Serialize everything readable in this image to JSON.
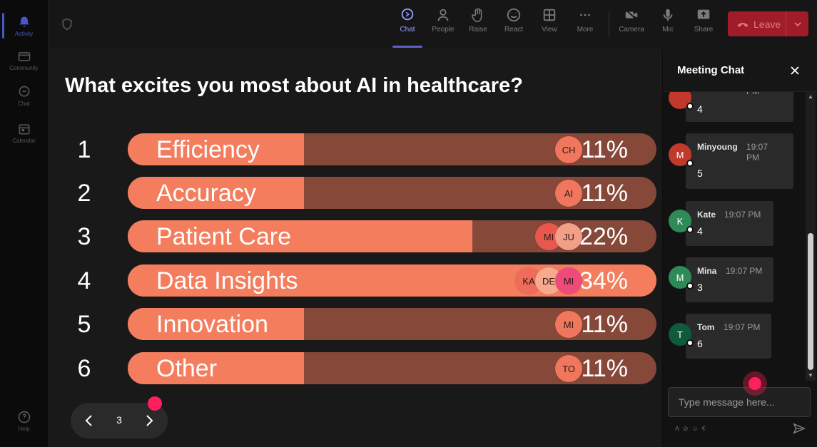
{
  "rail": {
    "items": [
      {
        "label": "Activity",
        "icon": "bell-icon"
      },
      {
        "label": "Community",
        "icon": "community-icon"
      },
      {
        "label": "Chat",
        "icon": "chat-icon"
      },
      {
        "label": "Calendar",
        "icon": "calendar-icon"
      },
      {
        "label": "Help",
        "icon": "help-icon"
      }
    ]
  },
  "toolbar": {
    "chat": "Chat",
    "people": "People",
    "raise": "Raise",
    "react": "React",
    "view": "View",
    "more": "More",
    "camera": "Camera",
    "mic": "Mic",
    "share": "Share",
    "leave": "Leave"
  },
  "poll": {
    "question": "What excites you most about AI in healthcare?",
    "options": [
      {
        "num": "1",
        "label": "Efficiency",
        "percent": "11%",
        "fraction": 0.11,
        "avatars": [
          {
            "initials": "CH",
            "color": "#f0765d"
          }
        ]
      },
      {
        "num": "2",
        "label": "Accuracy",
        "percent": "11%",
        "fraction": 0.11,
        "avatars": [
          {
            "initials": "AI",
            "color": "#f0765d"
          }
        ]
      },
      {
        "num": "3",
        "label": "Patient Care",
        "percent": "22%",
        "fraction": 0.22,
        "avatars": [
          {
            "initials": "MI",
            "color": "#e8584f"
          },
          {
            "initials": "JU",
            "color": "#f29f88"
          }
        ]
      },
      {
        "num": "4",
        "label": "Data Insights",
        "percent": "34%",
        "fraction": 0.34,
        "avatars": [
          {
            "initials": "KA",
            "color": "#ef6b5a"
          },
          {
            "initials": "DE",
            "color": "#f7a98e"
          },
          {
            "initials": "MI",
            "color": "#ee4a7a"
          }
        ]
      },
      {
        "num": "5",
        "label": "Innovation",
        "percent": "11%",
        "fraction": 0.11,
        "avatars": [
          {
            "initials": "MI",
            "color": "#f0765d"
          }
        ]
      },
      {
        "num": "6",
        "label": "Other",
        "percent": "11%",
        "fraction": 0.11,
        "avatars": [
          {
            "initials": "TO",
            "color": "#f0765d"
          }
        ]
      }
    ]
  },
  "pager": {
    "page": "3"
  },
  "chat": {
    "title": "Meeting Chat",
    "messages": [
      {
        "author": "",
        "time": "PM",
        "text": "4",
        "avatar": "",
        "color": "#c0392b"
      },
      {
        "author": "Minyoung",
        "time": "19:07 PM",
        "text": "5",
        "avatar": "M",
        "color": "#c0392b"
      },
      {
        "author": "Kate",
        "time": "19:07 PM",
        "text": "4",
        "avatar": "K",
        "color": "#2e8b57"
      },
      {
        "author": "Mina",
        "time": "19:07 PM",
        "text": "3",
        "avatar": "M",
        "color": "#2e8b57"
      },
      {
        "author": "Tom",
        "time": "19:07 PM",
        "text": "6",
        "avatar": "T",
        "color": "#0e5a3a"
      }
    ],
    "placeholder": "Type message here..."
  }
}
